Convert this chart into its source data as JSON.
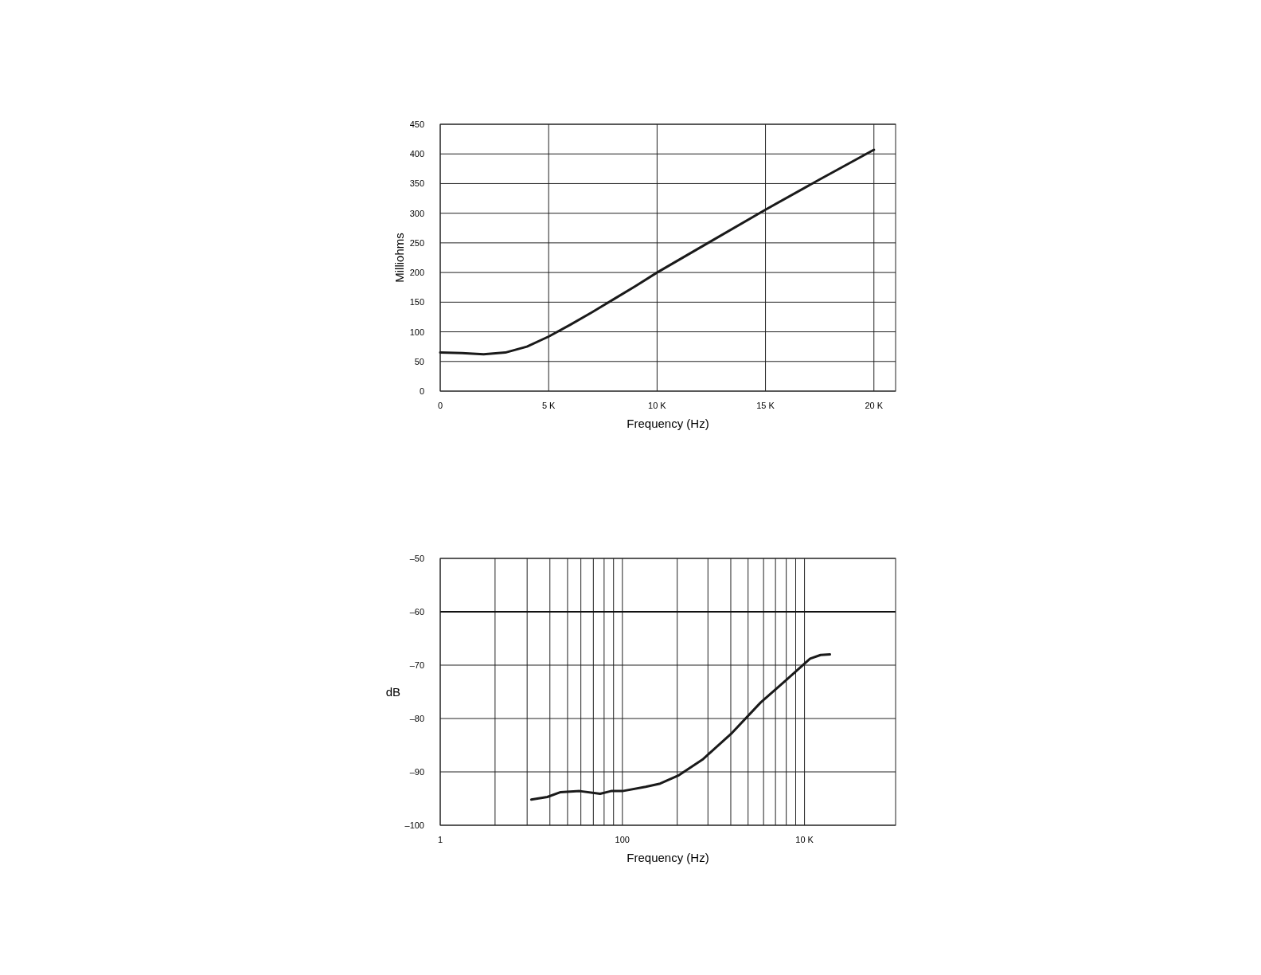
{
  "chart_data": [
    {
      "type": "line",
      "xlabel": "Frequency (Hz)",
      "ylabel": "Milliohms",
      "xlim": [
        0,
        21000
      ],
      "ylim": [
        0,
        450
      ],
      "xticks": [
        0,
        {
          "value": 5000,
          "label": "5 K"
        },
        {
          "value": 10000,
          "label": "10 K"
        },
        {
          "value": 15000,
          "label": "15 K"
        },
        {
          "value": 20000,
          "label": "20 K"
        }
      ],
      "yticks": [
        0,
        50,
        100,
        150,
        200,
        250,
        300,
        350,
        400,
        450
      ],
      "grid": true,
      "x": [
        0,
        1000,
        2000,
        3000,
        4000,
        5000,
        6000,
        7000,
        8000,
        9000,
        10000,
        12500,
        15000,
        17500,
        20000
      ],
      "series": [
        {
          "color": "#1a1a1a",
          "values": [
            65,
            64,
            62,
            65,
            75,
            92,
            112,
            133,
            155,
            177,
            200,
            253,
            306,
            357,
            407
          ]
        }
      ]
    },
    {
      "type": "line",
      "xlabel": "Frequency (Hz)",
      "ylabel": "dB",
      "log": "x",
      "xlim": [
        1,
        100000
      ],
      "ylim": [
        -100,
        -50
      ],
      "xticks": [
        1,
        {
          "value": 4,
          "label": null
        },
        {
          "value": 9,
          "label": null
        },
        {
          "value": 16,
          "label": null
        },
        {
          "value": 25,
          "label": null
        },
        {
          "value": 35,
          "label": null
        },
        {
          "value": 48,
          "label": null
        },
        {
          "value": 63,
          "label": null
        },
        {
          "value": 80,
          "label": null
        },
        100,
        {
          "value": 400,
          "label": null
        },
        {
          "value": 870,
          "label": null
        },
        {
          "value": 1550,
          "label": null
        },
        {
          "value": 2400,
          "label": null
        },
        {
          "value": 3550,
          "label": null
        },
        {
          "value": 4800,
          "label": null
        },
        {
          "value": 6300,
          "label": null
        },
        {
          "value": 8000,
          "label": null
        },
        {
          "value": 10000,
          "label": "10 K"
        }
      ],
      "yticks": [
        {
          "value": -100,
          "label": "–100"
        },
        {
          "value": -90,
          "label": "–90"
        },
        {
          "value": -80,
          "label": "–80"
        },
        {
          "value": -70,
          "label": "–70"
        },
        {
          "value": -60,
          "label": "–60"
        },
        {
          "value": -50,
          "label": "–50"
        }
      ],
      "grid": true,
      "ref_lines": [
        {
          "axis": "y",
          "value": -60
        }
      ],
      "x": [
        10,
        15,
        21,
        34,
        57,
        75,
        100,
        180,
        260,
        410,
        770,
        1600,
        3300,
        6200,
        11500,
        15000,
        19000
      ],
      "series": [
        {
          "color": "#1a1a1a",
          "values": [
            -95.2,
            -94.7,
            -93.8,
            -93.6,
            -94.1,
            -93.6,
            -93.6,
            -92.8,
            -92.2,
            -90.7,
            -87.6,
            -82.7,
            -77.0,
            -72.9,
            -68.8,
            -68.1,
            -68.0
          ]
        }
      ]
    }
  ]
}
